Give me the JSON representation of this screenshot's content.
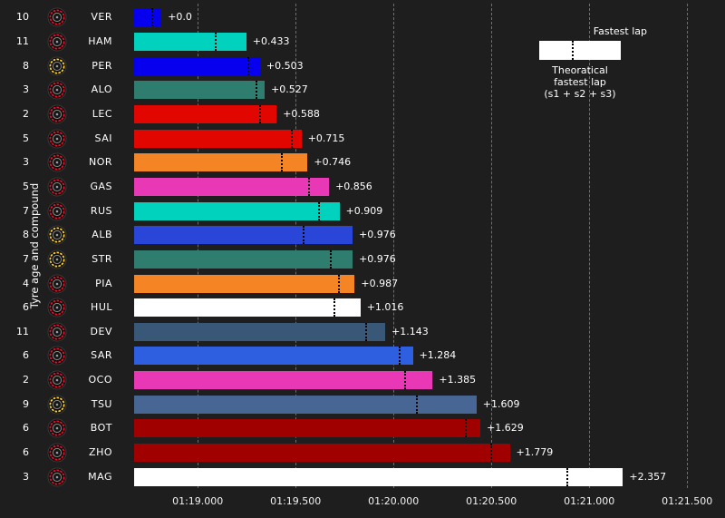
{
  "ylabel": "Tyre age and compound",
  "legend": {
    "fastest_lap": "Fastest lap",
    "theoretical_line1": "Theoratical",
    "theoretical_line2": "fastest lap",
    "theoretical_line3": "(s1 + s2 + s3)"
  },
  "colors": {
    "background": "#1e1e1e",
    "text": "#ffffff",
    "gridline": "#6e6e6e",
    "marker": "#000000",
    "legend_bar": "#ffffff",
    "compound_soft": "#e8112d",
    "compound_medium": "#ffd12e",
    "tyre_body": "#0a0a0a"
  },
  "chart_data": {
    "type": "bar",
    "orientation": "horizontal",
    "title": "",
    "xlabel": "",
    "ylabel": "Tyre age and compound",
    "grid": true,
    "legend_position": "upper right",
    "x_tick_labels": [
      "01:19.000",
      "01:19.500",
      "01:20.000",
      "01:20.500",
      "01:21.000",
      "01:21.500"
    ],
    "x_tick_seconds": [
      79.0,
      79.5,
      80.0,
      80.5,
      81.0,
      81.5
    ],
    "xlim_seconds": [
      78.675,
      81.56
    ],
    "fastest_lap_seconds_estimate": 78.815,
    "drivers": [
      {
        "code": "VER",
        "tyre_age": 10,
        "compound": "soft",
        "team_color": "#0600ef",
        "gap_s": 0.0,
        "gap_label": "+0.0",
        "theoretical_gap_s": -0.05
      },
      {
        "code": "HAM",
        "tyre_age": 11,
        "compound": "soft",
        "team_color": "#00d2be",
        "gap_s": 0.433,
        "gap_label": "+0.433",
        "theoretical_gap_s": 0.27
      },
      {
        "code": "PER",
        "tyre_age": 8,
        "compound": "medium",
        "team_color": "#0600ef",
        "gap_s": 0.503,
        "gap_label": "+0.503",
        "theoretical_gap_s": 0.44
      },
      {
        "code": "ALO",
        "tyre_age": 3,
        "compound": "soft",
        "team_color": "#2e7d6e",
        "gap_s": 0.527,
        "gap_label": "+0.527",
        "theoretical_gap_s": 0.48
      },
      {
        "code": "LEC",
        "tyre_age": 2,
        "compound": "soft",
        "team_color": "#e10600",
        "gap_s": 0.588,
        "gap_label": "+0.588",
        "theoretical_gap_s": 0.5
      },
      {
        "code": "SAI",
        "tyre_age": 5,
        "compound": "soft",
        "team_color": "#e10600",
        "gap_s": 0.715,
        "gap_label": "+0.715",
        "theoretical_gap_s": 0.66
      },
      {
        "code": "NOR",
        "tyre_age": 3,
        "compound": "soft",
        "team_color": "#f58425",
        "gap_s": 0.746,
        "gap_label": "+0.746",
        "theoretical_gap_s": 0.61
      },
      {
        "code": "GAS",
        "tyre_age": 5,
        "compound": "soft",
        "team_color": "#e838b6",
        "gap_s": 0.856,
        "gap_label": "+0.856",
        "theoretical_gap_s": 0.75
      },
      {
        "code": "RUS",
        "tyre_age": 7,
        "compound": "soft",
        "team_color": "#00d2be",
        "gap_s": 0.909,
        "gap_label": "+0.909",
        "theoretical_gap_s": 0.8
      },
      {
        "code": "ALB",
        "tyre_age": 8,
        "compound": "medium",
        "team_color": "#2946d8",
        "gap_s": 0.976,
        "gap_label": "+0.976",
        "theoretical_gap_s": 0.72
      },
      {
        "code": "STR",
        "tyre_age": 7,
        "compound": "medium",
        "team_color": "#2e7d6e",
        "gap_s": 0.976,
        "gap_label": "+0.976",
        "theoretical_gap_s": 0.86
      },
      {
        "code": "PIA",
        "tyre_age": 4,
        "compound": "soft",
        "team_color": "#f58425",
        "gap_s": 0.987,
        "gap_label": "+0.987",
        "theoretical_gap_s": 0.9
      },
      {
        "code": "HUL",
        "tyre_age": 6,
        "compound": "soft",
        "team_color": "#ffffff",
        "gap_s": 1.016,
        "gap_label": "+1.016",
        "theoretical_gap_s": 0.88
      },
      {
        "code": "DEV",
        "tyre_age": 11,
        "compound": "soft",
        "team_color": "#395878",
        "gap_s": 1.143,
        "gap_label": "+1.143",
        "theoretical_gap_s": 1.04
      },
      {
        "code": "SAR",
        "tyre_age": 6,
        "compound": "soft",
        "team_color": "#2d5fe0",
        "gap_s": 1.284,
        "gap_label": "+1.284",
        "theoretical_gap_s": 1.21
      },
      {
        "code": "OCO",
        "tyre_age": 2,
        "compound": "soft",
        "team_color": "#e838b6",
        "gap_s": 1.385,
        "gap_label": "+1.385",
        "theoretical_gap_s": 1.24
      },
      {
        "code": "TSU",
        "tyre_age": 9,
        "compound": "medium",
        "team_color": "#476693",
        "gap_s": 1.609,
        "gap_label": "+1.609",
        "theoretical_gap_s": 1.3
      },
      {
        "code": "BOT",
        "tyre_age": 6,
        "compound": "soft",
        "team_color": "#a00000",
        "gap_s": 1.629,
        "gap_label": "+1.629",
        "theoretical_gap_s": 1.55
      },
      {
        "code": "ZHO",
        "tyre_age": 6,
        "compound": "soft",
        "team_color": "#a00000",
        "gap_s": 1.779,
        "gap_label": "+1.779",
        "theoretical_gap_s": 1.68
      },
      {
        "code": "MAG",
        "tyre_age": 3,
        "compound": "soft",
        "team_color": "#ffffff",
        "gap_s": 2.357,
        "gap_label": "+2.357",
        "theoretical_gap_s": 2.07
      }
    ]
  }
}
